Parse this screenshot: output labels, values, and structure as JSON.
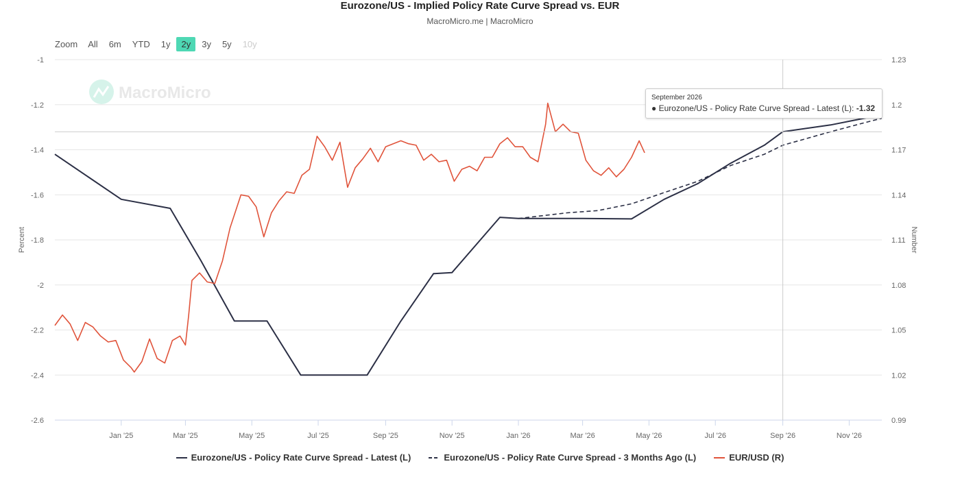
{
  "header": {
    "title": "Eurozone/US - Implied Policy Rate Curve Spread vs. EUR",
    "subtitle": "MacroMicro.me | MacroMicro"
  },
  "zoom": {
    "label": "Zoom",
    "buttons": [
      {
        "label": "All",
        "state": "normal"
      },
      {
        "label": "6m",
        "state": "normal"
      },
      {
        "label": "YTD",
        "state": "normal"
      },
      {
        "label": "1y",
        "state": "normal"
      },
      {
        "label": "2y",
        "state": "active"
      },
      {
        "label": "3y",
        "state": "normal"
      },
      {
        "label": "5y",
        "state": "normal"
      },
      {
        "label": "10y",
        "state": "disabled"
      }
    ]
  },
  "watermark": "MacroMicro",
  "tooltip": {
    "date": "September 2026",
    "series": "Eurozone/US - Policy Rate Curve Spread - Latest (L): ",
    "value": "-1.32"
  },
  "colors": {
    "latest": "#2b2f45",
    "three_months": "#2b2f45",
    "eurusd": "#e0533a",
    "zoom_active": "#4ed8b4",
    "grid": "#e6e6e6"
  },
  "chart_data": {
    "type": "line",
    "left_axis": {
      "label": "Percent",
      "ticks": [
        "-1",
        "-1.2",
        "-1.4",
        "-1.6",
        "-1.8",
        "-2",
        "-2.2",
        "-2.4",
        "-2.6"
      ],
      "range": [
        -2.6,
        -1
      ]
    },
    "right_axis": {
      "label": "Number",
      "ticks": [
        "1.23",
        "1.2",
        "1.17",
        "1.14",
        "1.11",
        "1.08",
        "1.05",
        "1.02",
        "0.99"
      ],
      "range": [
        0.99,
        1.23
      ]
    },
    "x_axis": {
      "ticks": [
        "Jan '25",
        "Mar '25",
        "May '25",
        "Jul '25",
        "Sep '25",
        "Nov '25",
        "Jan '26",
        "Mar '26",
        "May '26",
        "Jul '26",
        "Sep '26",
        "Nov '26"
      ],
      "tick_dates": [
        "2025-01-01",
        "2025-03-01",
        "2025-05-01",
        "2025-07-01",
        "2025-09-01",
        "2025-11-01",
        "2026-01-01",
        "2026-03-01",
        "2026-05-01",
        "2026-07-01",
        "2026-09-01",
        "2026-11-01"
      ],
      "range": [
        "2024-11-01",
        "2026-12-01"
      ]
    },
    "crosshair": "2026-09-01",
    "series": [
      {
        "name": "Eurozone/US - Policy Rate Curve Spread - Latest (L)",
        "axis": "left",
        "style": "solid",
        "points": [
          [
            "2024-11-01",
            -1.42
          ],
          [
            "2025-01-01",
            -1.62
          ],
          [
            "2025-02-15",
            -1.66
          ],
          [
            "2025-03-15",
            -1.89
          ],
          [
            "2025-04-15",
            -2.16
          ],
          [
            "2025-05-15",
            -2.16
          ],
          [
            "2025-06-15",
            -2.4
          ],
          [
            "2025-07-15",
            -2.4
          ],
          [
            "2025-08-15",
            -2.4
          ],
          [
            "2025-09-15",
            -2.16
          ],
          [
            "2025-10-15",
            -1.95
          ],
          [
            "2025-11-01",
            -1.945
          ],
          [
            "2025-12-15",
            -1.7
          ],
          [
            "2026-01-01",
            -1.705
          ],
          [
            "2026-03-01",
            -1.705
          ],
          [
            "2026-04-15",
            -1.707
          ],
          [
            "2026-05-15",
            -1.62
          ],
          [
            "2026-06-15",
            -1.55
          ],
          [
            "2026-07-15",
            -1.46
          ],
          [
            "2026-08-15",
            -1.38
          ],
          [
            "2026-09-01",
            -1.32
          ],
          [
            "2026-10-15",
            -1.29
          ],
          [
            "2026-11-15",
            -1.26
          ],
          [
            "2026-12-01",
            -1.245
          ]
        ]
      },
      {
        "name": "Eurozone/US - Policy Rate Curve Spread - 3 Months Ago (L)",
        "axis": "left",
        "style": "dashed",
        "points": [
          [
            "2026-01-01",
            -1.705
          ],
          [
            "2026-02-15",
            -1.68
          ],
          [
            "2026-03-15",
            -1.67
          ],
          [
            "2026-04-15",
            -1.64
          ],
          [
            "2026-05-15",
            -1.59
          ],
          [
            "2026-06-15",
            -1.54
          ],
          [
            "2026-07-15",
            -1.47
          ],
          [
            "2026-08-15",
            -1.42
          ],
          [
            "2026-09-01",
            -1.38
          ],
          [
            "2026-10-15",
            -1.32
          ],
          [
            "2026-11-15",
            -1.28
          ],
          [
            "2026-12-01",
            -1.26
          ]
        ]
      },
      {
        "name": "EUR/USD (R)",
        "axis": "right",
        "style": "solid",
        "points": [
          [
            "2024-11-01",
            1.053
          ],
          [
            "2024-11-08",
            1.06
          ],
          [
            "2024-11-15",
            1.054
          ],
          [
            "2024-11-22",
            1.043
          ],
          [
            "2024-11-29",
            1.055
          ],
          [
            "2024-12-06",
            1.052
          ],
          [
            "2024-12-13",
            1.046
          ],
          [
            "2024-12-20",
            1.042
          ],
          [
            "2024-12-27",
            1.043
          ],
          [
            "2025-01-03",
            1.03
          ],
          [
            "2025-01-10",
            1.025
          ],
          [
            "2025-01-13",
            1.022
          ],
          [
            "2025-01-20",
            1.029
          ],
          [
            "2025-01-27",
            1.044
          ],
          [
            "2025-02-03",
            1.031
          ],
          [
            "2025-02-10",
            1.028
          ],
          [
            "2025-02-17",
            1.043
          ],
          [
            "2025-02-24",
            1.046
          ],
          [
            "2025-03-01",
            1.04
          ],
          [
            "2025-03-04",
            1.06
          ],
          [
            "2025-03-07",
            1.083
          ],
          [
            "2025-03-14",
            1.088
          ],
          [
            "2025-03-21",
            1.082
          ],
          [
            "2025-03-28",
            1.081
          ],
          [
            "2025-04-04",
            1.096
          ],
          [
            "2025-04-11",
            1.118
          ],
          [
            "2025-04-21",
            1.14
          ],
          [
            "2025-04-28",
            1.139
          ],
          [
            "2025-05-05",
            1.132
          ],
          [
            "2025-05-12",
            1.112
          ],
          [
            "2025-05-19",
            1.128
          ],
          [
            "2025-05-26",
            1.136
          ],
          [
            "2025-06-02",
            1.142
          ],
          [
            "2025-06-09",
            1.141
          ],
          [
            "2025-06-16",
            1.153
          ],
          [
            "2025-06-23",
            1.157
          ],
          [
            "2025-06-30",
            1.179
          ],
          [
            "2025-07-07",
            1.172
          ],
          [
            "2025-07-14",
            1.163
          ],
          [
            "2025-07-21",
            1.175
          ],
          [
            "2025-07-28",
            1.145
          ],
          [
            "2025-08-04",
            1.158
          ],
          [
            "2025-08-11",
            1.164
          ],
          [
            "2025-08-18",
            1.171
          ],
          [
            "2025-08-25",
            1.162
          ],
          [
            "2025-09-01",
            1.172
          ],
          [
            "2025-09-08",
            1.174
          ],
          [
            "2025-09-15",
            1.176
          ],
          [
            "2025-09-22",
            1.174
          ],
          [
            "2025-09-29",
            1.173
          ],
          [
            "2025-10-06",
            1.163
          ],
          [
            "2025-10-13",
            1.167
          ],
          [
            "2025-10-20",
            1.162
          ],
          [
            "2025-10-27",
            1.163
          ],
          [
            "2025-11-03",
            1.149
          ],
          [
            "2025-11-10",
            1.157
          ],
          [
            "2025-11-17",
            1.159
          ],
          [
            "2025-11-24",
            1.156
          ],
          [
            "2025-12-01",
            1.165
          ],
          [
            "2025-12-08",
            1.165
          ],
          [
            "2025-12-15",
            1.174
          ],
          [
            "2025-12-22",
            1.178
          ],
          [
            "2025-12-29",
            1.172
          ],
          [
            "2026-01-05",
            1.172
          ],
          [
            "2026-01-12",
            1.165
          ],
          [
            "2026-01-19",
            1.162
          ],
          [
            "2026-01-26",
            1.187
          ],
          [
            "2026-01-28",
            1.201
          ],
          [
            "2026-02-04",
            1.182
          ],
          [
            "2026-02-11",
            1.187
          ],
          [
            "2026-02-18",
            1.182
          ],
          [
            "2026-02-25",
            1.181
          ],
          [
            "2026-03-04",
            1.163
          ],
          [
            "2026-03-11",
            1.156
          ],
          [
            "2026-03-18",
            1.153
          ],
          [
            "2026-03-25",
            1.158
          ],
          [
            "2026-04-01",
            1.152
          ],
          [
            "2026-04-08",
            1.157
          ],
          [
            "2026-04-15",
            1.165
          ],
          [
            "2026-04-22",
            1.176
          ],
          [
            "2026-04-27",
            1.168
          ]
        ]
      }
    ],
    "legend": {
      "placement": "bottom-center",
      "items": [
        {
          "label": "Eurozone/US - Policy Rate Curve Spread - Latest (L)",
          "style": "solid",
          "color": "#2b2f45"
        },
        {
          "label": "Eurozone/US - Policy Rate Curve Spread - 3 Months Ago (L)",
          "style": "dashed",
          "color": "#2b2f45"
        },
        {
          "label": "EUR/USD (R)",
          "style": "solid",
          "color": "#e0533a"
        }
      ]
    },
    "grid": true
  }
}
